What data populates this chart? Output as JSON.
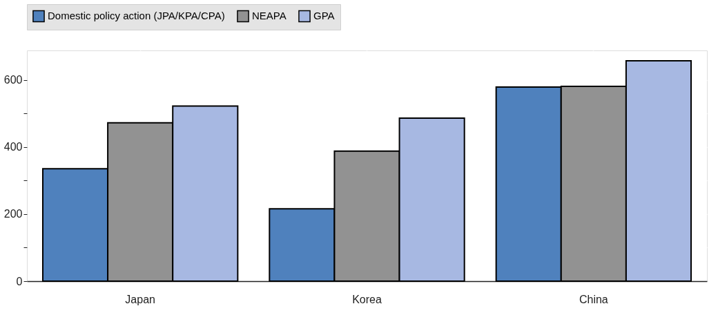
{
  "chart_data": {
    "type": "bar",
    "categories": [
      "Japan",
      "Korea",
      "China"
    ],
    "series": [
      {
        "name": "Domestic policy action (JPA/KPA/CPA)",
        "color": "#4f81bd",
        "values": [
          335,
          216,
          579
        ]
      },
      {
        "name": "NEAPA",
        "color": "#929292",
        "values": [
          472,
          388,
          581
        ]
      },
      {
        "name": "GPA",
        "color": "#a7b8e2",
        "values": [
          522,
          486,
          657
        ]
      }
    ],
    "ylim": [
      0,
      688
    ],
    "yticks": [
      0,
      {
        "value": 100,
        "label": null
      },
      200,
      {
        "value": 300,
        "label": null
      },
      400,
      {
        "value": 500,
        "label": null
      },
      600
    ],
    "grid": true,
    "legend": "top"
  }
}
